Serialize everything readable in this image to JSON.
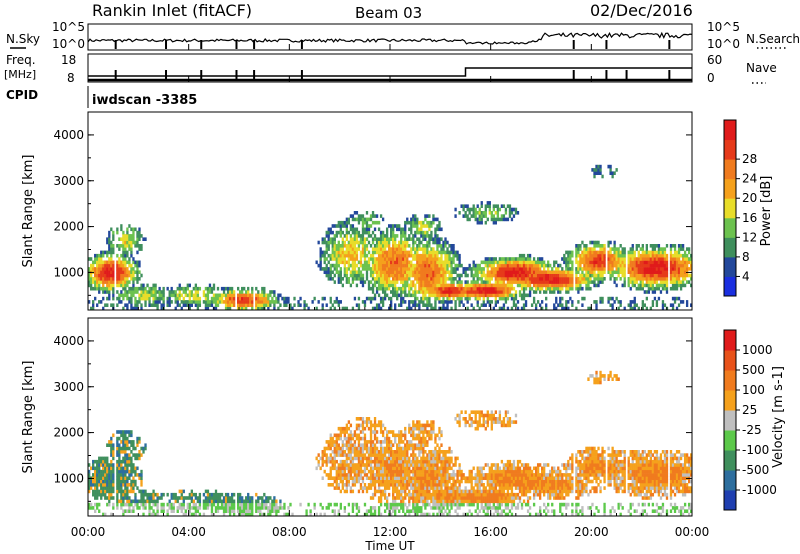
{
  "header": {
    "station": "Rankin Inlet (fitACF)",
    "beam": "Beam 03",
    "date": "02/Dec/2016"
  },
  "status_panels": {
    "nsky_label": "N.Sky",
    "nsky_ticks": [
      "10^5",
      "10^0"
    ],
    "nsearch_label": "N.Search",
    "nsearch_ticks": [
      "10^5",
      "10^0"
    ],
    "freq_label": "Freq.",
    "freq_unit": "[MHz]",
    "freq_ticks": [
      "18",
      "8"
    ],
    "nave_label": "Nave",
    "nave_ticks": [
      "60",
      "0"
    ],
    "cpid_label": "CPID",
    "cpid_value": "iwdscan -3385"
  },
  "chart_data": [
    {
      "type": "heatmap",
      "title": "",
      "xlabel": "",
      "ylabel": "Slant Range [km]",
      "xlim": [
        0,
        24
      ],
      "ylim": [
        180,
        4500
      ],
      "yticks": [
        1000,
        2000,
        3000,
        4000
      ],
      "ytick_labels": [
        "1000",
        "2000",
        "3000",
        "4000"
      ],
      "colorbar": {
        "label": "Power [dB]",
        "ticks": [
          "4",
          "8",
          "12",
          "16",
          "20",
          "24",
          "28"
        ],
        "colors": [
          "#1a2fe0",
          "#23489b",
          "#3f8f5d",
          "#6cc24f",
          "#e8dd2a",
          "#f5a11c",
          "#f07b1e",
          "#e63a1a",
          "#e01b1b"
        ]
      }
    },
    {
      "type": "heatmap",
      "title": "",
      "xlabel": "Time UT",
      "ylabel": "Slant Range [km]",
      "xlim": [
        0,
        24
      ],
      "ylim": [
        180,
        4500
      ],
      "xticks": [
        0,
        4,
        8,
        12,
        16,
        20,
        24
      ],
      "xtick_labels": [
        "00:00",
        "04:00",
        "08:00",
        "12:00",
        "16:00",
        "20:00",
        "00:00"
      ],
      "yticks": [
        1000,
        2000,
        3000,
        4000
      ],
      "ytick_labels": [
        "1000",
        "2000",
        "3000",
        "4000"
      ],
      "colorbar": {
        "label": "Velocity [m s-1]",
        "ticks": [
          "1000",
          "500",
          "100",
          "25",
          "-25",
          "-100",
          "-500",
          "-1000"
        ],
        "colors": [
          "#1f3fb0",
          "#2d6e9e",
          "#3f8f5d",
          "#5cc94a",
          "#bfbfbf",
          "#f5a11c",
          "#f07b1e",
          "#e8521a",
          "#e01b1b"
        ]
      }
    }
  ]
}
